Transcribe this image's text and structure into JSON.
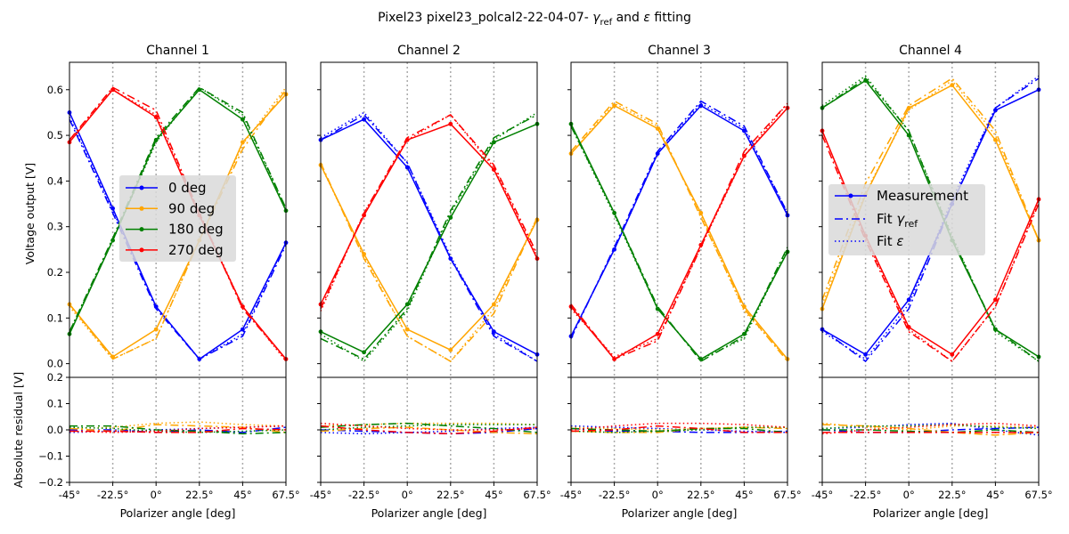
{
  "figure": {
    "title_main": "Pixel23 pixel23_polcal2-22-04-07-  ",
    "title_gamma": "γ",
    "title_ref": "ref",
    "title_and": " and ",
    "title_eps": "ε",
    "title_tail": " fitting",
    "ylabel_top": "Voltage output [V]",
    "ylabel_bottom": "Absolute residual [V]",
    "xlabel": "Polarizer angle [deg]"
  },
  "legend_angles": [
    {
      "label": "0 deg",
      "color": "#0000ff"
    },
    {
      "label": "90 deg",
      "color": "#ffa500"
    },
    {
      "label": "180 deg",
      "color": "#008000"
    },
    {
      "label": "270 deg",
      "color": "#ff0000"
    }
  ],
  "legend_styles": {
    "measurement": "Measurement",
    "fit_gamma_prefix": "Fit ",
    "fit_gamma_symbol": "γ",
    "fit_gamma_sub": "ref",
    "fit_eps_prefix": "Fit ",
    "fit_eps_symbol": "ε"
  },
  "chart_data": {
    "type": "line",
    "x": [
      -45,
      -22.5,
      0,
      22.5,
      45,
      67.5
    ],
    "x_tick_labels": [
      "-45°",
      "-22.5°",
      "0°",
      "22.5°",
      "45°",
      "67.5°"
    ],
    "vlines": [
      -22.5,
      0,
      22.5,
      45
    ],
    "top_ylim": [
      -0.03,
      0.66
    ],
    "top_yticks": [
      0.0,
      0.1,
      0.2,
      0.3,
      0.4,
      0.5,
      0.6
    ],
    "top_ytick_labels": [
      "0.0",
      "0.1",
      "0.2",
      "0.3",
      "0.4",
      "0.5",
      "0.6"
    ],
    "bottom_ylim": [
      -0.2,
      0.2
    ],
    "bottom_yticks": [
      -0.2,
      -0.1,
      0.0,
      0.1,
      0.2
    ],
    "bottom_ytick_labels": [
      "−0.2",
      "−0.1",
      "0.0",
      "0.1",
      "0.2"
    ],
    "series_colors": [
      "#0000ff",
      "#ffa500",
      "#008000",
      "#ff0000"
    ],
    "panels": [
      {
        "title": "Channel 1",
        "measurement": [
          [
            0.55,
            0.34,
            0.125,
            0.01,
            0.075,
            0.265
          ],
          [
            0.13,
            0.015,
            0.075,
            0.27,
            0.485,
            0.59
          ],
          [
            0.065,
            0.27,
            0.49,
            0.6,
            0.535,
            0.335
          ],
          [
            0.485,
            0.6,
            0.54,
            0.325,
            0.125,
            0.01
          ]
        ],
        "fit_gamma": [
          [
            0.535,
            0.33,
            0.12,
            0.01,
            0.06,
            0.26
          ],
          [
            0.13,
            0.01,
            0.055,
            0.27,
            0.47,
            0.6
          ],
          [
            0.07,
            0.275,
            0.495,
            0.605,
            0.55,
            0.34
          ],
          [
            0.49,
            0.605,
            0.555,
            0.33,
            0.12,
            0.01
          ]
        ],
        "fit_eps": [
          [
            0.54,
            0.335,
            0.125,
            0.01,
            0.065,
            0.265
          ],
          [
            0.125,
            0.01,
            0.055,
            0.27,
            0.48,
            0.605
          ],
          [
            0.07,
            0.27,
            0.485,
            0.605,
            0.545,
            0.34
          ],
          [
            0.49,
            0.6,
            0.545,
            0.33,
            0.125,
            0.005
          ]
        ],
        "resid_gamma": [
          [
            0.0,
            0.0,
            -0.01,
            0.0,
            -0.01,
            0.01
          ],
          [
            0.005,
            -0.005,
            0.02,
            0.015,
            0.01,
            -0.01
          ],
          [
            0.015,
            0.015,
            0.0,
            -0.005,
            -0.015,
            -0.01
          ],
          [
            -0.005,
            -0.005,
            -0.01,
            -0.01,
            0.005,
            0.0
          ]
        ],
        "resid_eps": [
          [
            -0.01,
            -0.005,
            0.0,
            0.005,
            0.01,
            0.015
          ],
          [
            0.005,
            0.01,
            0.025,
            0.03,
            0.02,
            0.015
          ],
          [
            0.01,
            0.005,
            -0.005,
            -0.01,
            -0.005,
            0.0
          ],
          [
            -0.005,
            -0.01,
            -0.005,
            0.005,
            0.01,
            0.015
          ]
        ]
      },
      {
        "title": "Channel 2",
        "measurement": [
          [
            0.49,
            0.535,
            0.43,
            0.23,
            0.07,
            0.02
          ],
          [
            0.435,
            0.24,
            0.075,
            0.03,
            0.13,
            0.315
          ],
          [
            0.07,
            0.025,
            0.13,
            0.32,
            0.485,
            0.525
          ],
          [
            0.13,
            0.325,
            0.49,
            0.525,
            0.425,
            0.23
          ]
        ],
        "fit_gamma": [
          [
            0.49,
            0.545,
            0.44,
            0.23,
            0.06,
            0.005
          ],
          [
            0.44,
            0.23,
            0.06,
            0.005,
            0.11,
            0.32
          ],
          [
            0.055,
            0.01,
            0.12,
            0.335,
            0.495,
            0.545
          ],
          [
            0.12,
            0.33,
            0.495,
            0.545,
            0.435,
            0.24
          ]
        ],
        "fit_eps": [
          [
            0.495,
            0.55,
            0.44,
            0.235,
            0.065,
            0.005
          ],
          [
            0.435,
            0.235,
            0.06,
            0.005,
            0.12,
            0.32
          ],
          [
            0.065,
            0.005,
            0.115,
            0.33,
            0.49,
            0.55
          ],
          [
            0.115,
            0.33,
            0.49,
            0.545,
            0.43,
            0.235
          ]
        ],
        "resid_gamma": [
          [
            0.0,
            -0.005,
            -0.01,
            -0.015,
            -0.01,
            0.005
          ],
          [
            -0.005,
            0.005,
            0.01,
            0.0,
            -0.01,
            -0.015
          ],
          [
            0.01,
            0.02,
            0.025,
            0.015,
            0.005,
            -0.01
          ],
          [
            0.015,
            0.0,
            -0.01,
            -0.015,
            -0.005,
            0.01
          ]
        ],
        "resid_eps": [
          [
            -0.01,
            -0.015,
            -0.01,
            -0.005,
            0.005,
            0.01
          ],
          [
            0.015,
            0.02,
            0.025,
            0.025,
            0.025,
            0.02
          ],
          [
            0.0,
            0.01,
            0.015,
            0.02,
            0.02,
            0.02
          ],
          [
            0.025,
            0.015,
            0.005,
            0.0,
            0.0,
            0.005
          ]
        ]
      },
      {
        "title": "Channel 3",
        "measurement": [
          [
            0.06,
            0.25,
            0.46,
            0.565,
            0.51,
            0.325
          ],
          [
            0.46,
            0.565,
            0.515,
            0.33,
            0.125,
            0.01
          ],
          [
            0.525,
            0.33,
            0.12,
            0.01,
            0.065,
            0.245
          ],
          [
            0.125,
            0.01,
            0.065,
            0.26,
            0.455,
            0.56
          ]
        ],
        "fit_gamma": [
          [
            0.055,
            0.255,
            0.465,
            0.575,
            0.52,
            0.33
          ],
          [
            0.465,
            0.575,
            0.525,
            0.32,
            0.12,
            0.005
          ],
          [
            0.52,
            0.33,
            0.125,
            0.005,
            0.06,
            0.255
          ],
          [
            0.13,
            0.01,
            0.05,
            0.255,
            0.465,
            0.57
          ]
        ],
        "fit_eps": [
          [
            0.06,
            0.25,
            0.46,
            0.57,
            0.515,
            0.33
          ],
          [
            0.46,
            0.57,
            0.52,
            0.325,
            0.115,
            0.01
          ],
          [
            0.52,
            0.325,
            0.12,
            0.01,
            0.055,
            0.25
          ],
          [
            0.12,
            0.015,
            0.055,
            0.255,
            0.455,
            0.57
          ]
        ],
        "resid_gamma": [
          [
            0.005,
            -0.005,
            -0.005,
            -0.01,
            -0.01,
            -0.005
          ],
          [
            -0.005,
            -0.01,
            -0.01,
            0.005,
            0.01,
            0.005
          ],
          [
            0.005,
            0.0,
            -0.005,
            0.005,
            0.005,
            -0.01
          ],
          [
            -0.005,
            0.0,
            0.015,
            0.005,
            -0.01,
            -0.01
          ]
        ],
        "resid_eps": [
          [
            0.015,
            0.01,
            0.005,
            0.0,
            -0.005,
            -0.01
          ],
          [
            0.01,
            0.005,
            0.0,
            0.005,
            0.01,
            0.01
          ],
          [
            -0.005,
            -0.01,
            -0.005,
            0.0,
            0.01,
            0.01
          ],
          [
            0.0,
            0.015,
            0.025,
            0.025,
            0.02,
            0.01
          ]
        ]
      },
      {
        "title": "Channel 4",
        "measurement": [
          [
            0.075,
            0.02,
            0.14,
            0.35,
            0.555,
            0.6
          ],
          [
            0.12,
            0.37,
            0.56,
            0.61,
            0.49,
            0.27
          ],
          [
            0.56,
            0.62,
            0.5,
            0.27,
            0.075,
            0.015
          ],
          [
            0.51,
            0.28,
            0.08,
            0.02,
            0.14,
            0.36
          ]
        ],
        "fit_gamma": [
          [
            0.075,
            0.005,
            0.12,
            0.35,
            0.56,
            0.625
          ],
          [
            0.14,
            0.395,
            0.565,
            0.625,
            0.51,
            0.27
          ],
          [
            0.56,
            0.625,
            0.51,
            0.275,
            0.075,
            0.005
          ],
          [
            0.5,
            0.27,
            0.07,
            0.005,
            0.125,
            0.35
          ]
        ],
        "fit_eps": [
          [
            0.07,
            0.01,
            0.13,
            0.36,
            0.56,
            0.63
          ],
          [
            0.13,
            0.375,
            0.555,
            0.62,
            0.5,
            0.27
          ],
          [
            0.565,
            0.63,
            0.51,
            0.28,
            0.07,
            0.005
          ],
          [
            0.51,
            0.275,
            0.075,
            0.005,
            0.125,
            0.355
          ]
        ],
        "resid_gamma": [
          [
            0.0,
            -0.01,
            -0.01,
            0.0,
            0.005,
            0.01
          ],
          [
            0.02,
            0.015,
            0.005,
            -0.01,
            -0.02,
            -0.01
          ],
          [
            0.0,
            0.0,
            -0.005,
            -0.01,
            0.0,
            -0.01
          ],
          [
            -0.01,
            -0.01,
            -0.01,
            -0.01,
            -0.01,
            -0.01
          ]
        ],
        "resid_eps": [
          [
            0.005,
            0.01,
            0.02,
            0.025,
            0.0,
            -0.02
          ],
          [
            0.025,
            0.01,
            0.0,
            0.015,
            0.015,
            0.01
          ],
          [
            0.005,
            0.015,
            0.015,
            0.02,
            0.01,
            0.005
          ],
          [
            -0.015,
            0.0,
            0.01,
            0.02,
            0.025,
            0.015
          ]
        ]
      }
    ]
  }
}
